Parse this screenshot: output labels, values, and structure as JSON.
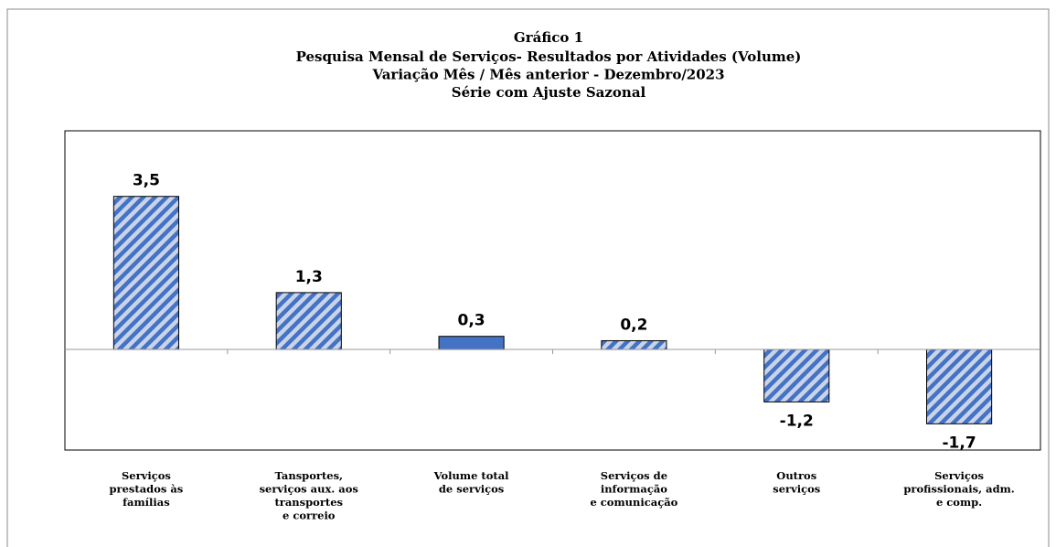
{
  "chart_data": {
    "type": "bar",
    "title": "Gráfico 1",
    "subtitle": "Pesquisa Mensal de Serviços- Resultados por Atividades (Volume)\nVariação Mês / Mês anterior - Dezembro/2023\nSérie com Ajuste Sazonal",
    "categories": [
      "Serviços\nprestados às\nfamílias",
      "Tansportes,\nserviços aux. aos\ntransportes\ne correio",
      "Volume total\nde serviços",
      "Serviços de\ninformação\ne comunicação",
      "Outros\nserviços",
      "Serviços\nprofissionais,  adm.\ne comp."
    ],
    "values": [
      3.5,
      1.3,
      0.3,
      0.2,
      -1.2,
      -1.7
    ],
    "value_labels": [
      "3,5",
      "1,3",
      "0,3",
      "0,2",
      "-1,2",
      "-1,7"
    ],
    "colors": [
      "#4472c4",
      "#4472c4",
      "#4472c4",
      "#4472c4",
      "#4472c4",
      "#4472c4"
    ],
    "patterns": [
      "hatch",
      "hatch",
      "solid",
      "hatch",
      "hatch",
      "hatch"
    ],
    "ylim": [
      -2.3,
      5
    ]
  }
}
